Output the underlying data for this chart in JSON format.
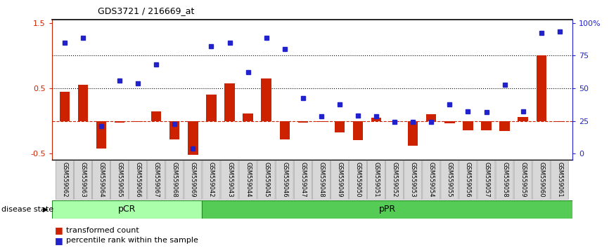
{
  "title": "GDS3721 / 216669_at",
  "samples": [
    "GSM559062",
    "GSM559063",
    "GSM559064",
    "GSM559065",
    "GSM559066",
    "GSM559067",
    "GSM559068",
    "GSM559069",
    "GSM559042",
    "GSM559043",
    "GSM559044",
    "GSM559045",
    "GSM559046",
    "GSM559047",
    "GSM559048",
    "GSM559049",
    "GSM559050",
    "GSM559051",
    "GSM559052",
    "GSM559053",
    "GSM559054",
    "GSM559055",
    "GSM559056",
    "GSM559057",
    "GSM559058",
    "GSM559059",
    "GSM559060",
    "GSM559061"
  ],
  "bar_values": [
    0.45,
    0.55,
    -0.42,
    -0.03,
    -0.02,
    0.15,
    -0.28,
    -0.52,
    0.4,
    0.57,
    0.11,
    0.65,
    -0.28,
    -0.03,
    -0.02,
    -0.18,
    -0.3,
    0.05,
    -0.02,
    -0.38,
    0.1,
    -0.04,
    -0.14,
    -0.14,
    -0.16,
    0.06,
    1.0,
    -0.02
  ],
  "dot_values": [
    1.2,
    1.27,
    -0.08,
    0.62,
    0.57,
    0.87,
    -0.05,
    -0.42,
    1.15,
    1.2,
    0.75,
    1.27,
    1.1,
    0.35,
    0.07,
    0.25,
    0.08,
    0.07,
    -0.02,
    -0.02,
    -0.02,
    0.25,
    0.15,
    0.13,
    0.55,
    0.14,
    1.35,
    1.37
  ],
  "pCR_count": 8,
  "pPR_count": 20,
  "bar_color": "#cc2200",
  "dot_color": "#2222cc",
  "ylim": [
    -0.6,
    1.55
  ],
  "left_yticks": [
    -0.5,
    0.5,
    1.5
  ],
  "left_yticklabels": [
    "-0.5",
    "0.5",
    "1.5"
  ],
  "right_tick_positions": [
    -0.5,
    0.0,
    0.5,
    1.0,
    1.5
  ],
  "right_tick_labels": [
    "0",
    "25",
    "50",
    "75",
    "100%"
  ],
  "dotted_line_vals": [
    1.0,
    0.5
  ],
  "dashed_line_val": 0.0,
  "background_color": "#ffffff",
  "pCR_color": "#aaffaa",
  "pPR_color": "#55cc55",
  "pCR_border": "#228822",
  "pPR_border": "#228822",
  "legend_bar_label": "transformed count",
  "legend_dot_label": "percentile rank within the sample",
  "disease_state_label": "disease state",
  "pCR_label": "pCR",
  "pPR_label": "pPR"
}
